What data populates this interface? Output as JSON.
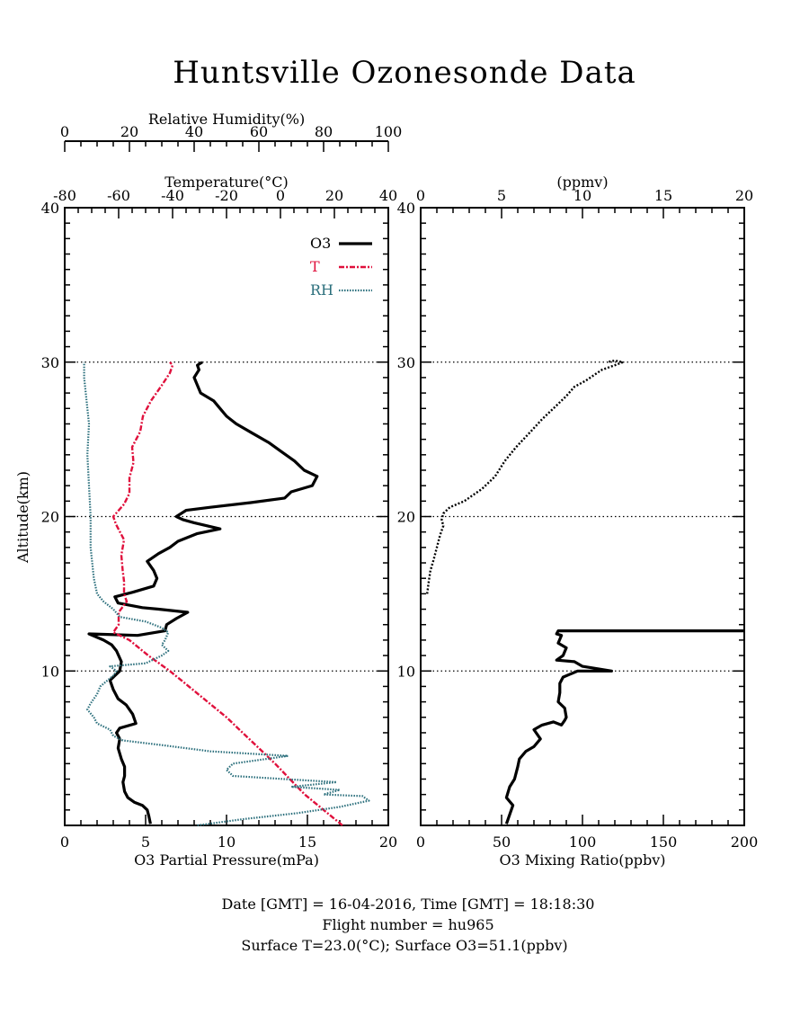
{
  "title": "Huntsville Ozonesonde Data",
  "colors": {
    "o3": "#000000",
    "temperature": "#e0103c",
    "rh": "#2b6f7c",
    "axis": "#000000"
  },
  "left_panel": {
    "top_axis_rh_label": "Relative Humidity(%)",
    "top_axis_temp_label": "Temperature(°C)",
    "bottom_axis_label": "O3 Partial Pressure(mPa)",
    "y_axis_label": "Altitude(km)"
  },
  "right_panel": {
    "top_axis_label": "(ppmv)",
    "bottom_axis_label": "O3 Mixing Ratio(ppbv)"
  },
  "legend": [
    {
      "label": "O3",
      "style": "solid"
    },
    {
      "label": "T",
      "style": "dashdot"
    },
    {
      "label": "RH",
      "style": "dotted"
    }
  ],
  "footer": {
    "line1": "Date [GMT] = 16-04-2016,  Time [GMT] = 18:18:30",
    "line2": "Flight number = hu965",
    "line3": "Surface T=23.0(°C); Surface O3=51.1(ppbv)"
  },
  "chart_data": [
    {
      "type": "line",
      "name": "profile",
      "ylim": [
        0,
        40
      ],
      "yticks": [
        10,
        20,
        30,
        40
      ],
      "axes": {
        "o3_partial_pressure": {
          "range": [
            0,
            20
          ],
          "ticks": [
            0,
            5,
            10,
            15,
            20
          ]
        },
        "temperature": {
          "range": [
            -80,
            40
          ],
          "ticks": [
            -80,
            -60,
            -40,
            -20,
            0,
            20,
            40
          ]
        },
        "relative_humidity": {
          "range": [
            0,
            100
          ],
          "ticks": [
            0,
            20,
            40,
            60,
            80,
            100
          ]
        }
      },
      "grid_altitudes": [
        10,
        20,
        30
      ],
      "legend_position": "top-right",
      "series": [
        {
          "name": "O3",
          "axis": "o3_partial_pressure",
          "style": "solid",
          "points": [
            [
              5.3,
              0.1
            ],
            [
              5.2,
              0.6
            ],
            [
              5.1,
              1.0
            ],
            [
              4.8,
              1.3
            ],
            [
              4.3,
              1.5
            ],
            [
              3.9,
              1.8
            ],
            [
              3.7,
              2.2
            ],
            [
              3.6,
              2.8
            ],
            [
              3.7,
              3.2
            ],
            [
              3.7,
              3.8
            ],
            [
              3.5,
              4.3
            ],
            [
              3.3,
              5.0
            ],
            [
              3.4,
              5.6
            ],
            [
              3.2,
              6.0
            ],
            [
              3.4,
              6.3
            ],
            [
              4.4,
              6.6
            ],
            [
              4.2,
              7.2
            ],
            [
              3.8,
              7.8
            ],
            [
              3.3,
              8.2
            ],
            [
              3.0,
              8.8
            ],
            [
              2.8,
              9.4
            ],
            [
              3.4,
              10.0
            ],
            [
              3.5,
              10.6
            ],
            [
              3.2,
              11.3
            ],
            [
              2.9,
              11.7
            ],
            [
              2.4,
              12.0
            ],
            [
              1.5,
              12.4
            ],
            [
              4.5,
              12.3
            ],
            [
              6.2,
              12.6
            ],
            [
              6.3,
              13.0
            ],
            [
              6.9,
              13.4
            ],
            [
              7.6,
              13.8
            ],
            [
              5.8,
              14.0
            ],
            [
              4.8,
              14.1
            ],
            [
              3.3,
              14.4
            ],
            [
              3.1,
              14.8
            ],
            [
              4.2,
              15.1
            ],
            [
              5.5,
              15.5
            ],
            [
              5.7,
              16.0
            ],
            [
              5.5,
              16.5
            ],
            [
              5.1,
              17.1
            ],
            [
              5.8,
              17.6
            ],
            [
              6.5,
              18.0
            ],
            [
              7.0,
              18.4
            ],
            [
              8.2,
              18.9
            ],
            [
              9.6,
              19.2
            ],
            [
              8.0,
              19.6
            ],
            [
              7.3,
              19.8
            ],
            [
              6.9,
              20.0
            ],
            [
              7.5,
              20.4
            ],
            [
              9.0,
              20.6
            ],
            [
              11.5,
              20.9
            ],
            [
              13.6,
              21.2
            ],
            [
              14.0,
              21.6
            ],
            [
              15.3,
              22.0
            ],
            [
              15.6,
              22.6
            ],
            [
              14.8,
              23.0
            ],
            [
              14.2,
              23.6
            ],
            [
              13.4,
              24.2
            ],
            [
              12.6,
              24.8
            ],
            [
              11.6,
              25.4
            ],
            [
              10.6,
              26.0
            ],
            [
              10.0,
              26.5
            ],
            [
              9.6,
              27.0
            ],
            [
              9.2,
              27.5
            ],
            [
              8.4,
              28.0
            ],
            [
              8.2,
              28.5
            ],
            [
              8.0,
              29.0
            ],
            [
              8.3,
              29.5
            ],
            [
              8.2,
              29.8
            ],
            [
              8.5,
              30.0
            ]
          ]
        },
        {
          "name": "T",
          "axis": "temperature",
          "style": "dashdot",
          "points": [
            [
              23.0,
              0.0
            ],
            [
              16.0,
              1.0
            ],
            [
              9.0,
              2.0
            ],
            [
              3.5,
              3.0
            ],
            [
              -2.0,
              4.0
            ],
            [
              -8.0,
              5.0
            ],
            [
              -14.0,
              6.0
            ],
            [
              -20.0,
              7.0
            ],
            [
              -27.0,
              8.0
            ],
            [
              -34.0,
              9.0
            ],
            [
              -41.0,
              10.0
            ],
            [
              -49.0,
              11.0
            ],
            [
              -56.0,
              12.0
            ],
            [
              -62.0,
              12.5
            ],
            [
              -60.0,
              13.0
            ],
            [
              -60.0,
              13.8
            ],
            [
              -57.0,
              14.5
            ],
            [
              -58.0,
              15.0
            ],
            [
              -58.0,
              15.8
            ],
            [
              -58.5,
              16.5
            ],
            [
              -59.0,
              17.5
            ],
            [
              -58.0,
              18.5
            ],
            [
              -61.0,
              19.5
            ],
            [
              -62.0,
              20.0
            ],
            [
              -58.0,
              20.8
            ],
            [
              -56.0,
              21.5
            ],
            [
              -56.0,
              22.5
            ],
            [
              -54.5,
              23.5
            ],
            [
              -55.0,
              24.5
            ],
            [
              -52.0,
              25.5
            ],
            [
              -51.0,
              26.5
            ],
            [
              -48.0,
              27.5
            ],
            [
              -44.0,
              28.5
            ],
            [
              -41.0,
              29.3
            ],
            [
              -40.0,
              29.8
            ],
            [
              -41.0,
              30.0
            ]
          ]
        },
        {
          "name": "RH",
          "axis": "relative_humidity",
          "style": "dotted",
          "points": [
            [
              41.0,
              0.0
            ],
            [
              55.0,
              0.4
            ],
            [
              72.0,
              0.8
            ],
            [
              85.0,
              1.2
            ],
            [
              94.0,
              1.6
            ],
            [
              92.0,
              1.9
            ],
            [
              80.0,
              2.0
            ],
            [
              85.0,
              2.3
            ],
            [
              70.0,
              2.5
            ],
            [
              84.0,
              2.8
            ],
            [
              68.0,
              3.0
            ],
            [
              52.0,
              3.2
            ],
            [
              50.0,
              3.6
            ],
            [
              52.0,
              4.0
            ],
            [
              69.0,
              4.5
            ],
            [
              45.0,
              4.8
            ],
            [
              30.0,
              5.2
            ],
            [
              18.0,
              5.5
            ],
            [
              15.0,
              5.8
            ],
            [
              14.0,
              6.2
            ],
            [
              10.0,
              6.6
            ],
            [
              9.0,
              7.0
            ],
            [
              7.0,
              7.5
            ],
            [
              8.0,
              7.9
            ],
            [
              10.0,
              8.5
            ],
            [
              11.0,
              9.0
            ],
            [
              15.0,
              9.7
            ],
            [
              16.0,
              10.0
            ],
            [
              14.0,
              10.3
            ],
            [
              25.0,
              10.5
            ],
            [
              30.0,
              11.0
            ],
            [
              32.0,
              11.3
            ],
            [
              30.0,
              11.7
            ],
            [
              31.0,
              12.0
            ],
            [
              32.0,
              12.5
            ],
            [
              30.0,
              12.8
            ],
            [
              25.0,
              13.2
            ],
            [
              17.0,
              13.5
            ],
            [
              15.0,
              14.0
            ],
            [
              12.0,
              14.5
            ],
            [
              10.0,
              15.0
            ],
            [
              9.0,
              16.0
            ],
            [
              8.0,
              18.0
            ],
            [
              8.0,
              20.0
            ],
            [
              7.5,
              22.0
            ],
            [
              7.0,
              24.0
            ],
            [
              7.5,
              26.0
            ],
            [
              7.0,
              27.0
            ],
            [
              6.5,
              28.0
            ],
            [
              6.0,
              29.0
            ],
            [
              6.0,
              30.0
            ]
          ]
        }
      ]
    },
    {
      "type": "line",
      "name": "mixing_ratio",
      "ylim": [
        0,
        40
      ],
      "yticks": [
        10,
        20,
        30,
        40
      ],
      "axes": {
        "o3_mixing_ratio_ppbv": {
          "range": [
            0,
            200
          ],
          "ticks": [
            0,
            50,
            100,
            150,
            200
          ]
        },
        "o3_mixing_ratio_ppmv": {
          "range": [
            0,
            20
          ],
          "ticks": [
            0,
            5,
            10,
            15,
            20
          ]
        }
      },
      "grid_altitudes": [
        10,
        20,
        30
      ],
      "series": [
        {
          "name": "O3 ppbv",
          "axis": "o3_mixing_ratio_ppbv",
          "style": "solid",
          "points": [
            [
              53,
              0.1
            ],
            [
              55,
              0.7
            ],
            [
              57,
              1.3
            ],
            [
              53,
              1.8
            ],
            [
              55,
              2.5
            ],
            [
              58,
              3.0
            ],
            [
              60,
              3.8
            ],
            [
              61,
              4.3
            ],
            [
              65,
              4.8
            ],
            [
              70,
              5.1
            ],
            [
              74,
              5.6
            ],
            [
              70,
              6.2
            ],
            [
              75,
              6.5
            ],
            [
              82,
              6.7
            ],
            [
              87,
              6.5
            ],
            [
              89,
              6.8
            ],
            [
              90,
              7.0
            ],
            [
              89,
              7.6
            ],
            [
              85,
              8.0
            ],
            [
              86,
              8.6
            ],
            [
              86,
              9.2
            ],
            [
              88,
              9.6
            ],
            [
              97,
              10.0
            ],
            [
              118,
              10.0
            ],
            [
              100,
              10.3
            ],
            [
              95,
              10.6
            ],
            [
              84,
              10.7
            ],
            [
              88,
              11.0
            ],
            [
              90,
              11.5
            ],
            [
              85,
              11.8
            ],
            [
              87,
              12.3
            ],
            [
              84,
              12.4
            ],
            [
              85,
              12.6
            ],
            [
              200,
              12.6
            ]
          ]
        },
        {
          "name": "O3 ppmv",
          "axis": "o3_mixing_ratio_ppmv",
          "style": "dotted",
          "points": [
            [
              0.4,
              15.0
            ],
            [
              0.5,
              15.8
            ],
            [
              0.6,
              16.5
            ],
            [
              0.8,
              17.2
            ],
            [
              1.0,
              18.0
            ],
            [
              1.2,
              18.8
            ],
            [
              1.4,
              19.4
            ],
            [
              1.3,
              19.8
            ],
            [
              1.4,
              20.2
            ],
            [
              1.8,
              20.6
            ],
            [
              2.7,
              21.0
            ],
            [
              3.8,
              21.8
            ],
            [
              4.6,
              22.6
            ],
            [
              5.2,
              23.6
            ],
            [
              5.9,
              24.5
            ],
            [
              6.8,
              25.5
            ],
            [
              7.5,
              26.3
            ],
            [
              8.3,
              27.1
            ],
            [
              9.0,
              27.8
            ],
            [
              9.5,
              28.4
            ],
            [
              10.2,
              28.8
            ],
            [
              11.2,
              29.5
            ],
            [
              12.0,
              29.8
            ],
            [
              12.5,
              30.0
            ],
            [
              12.0,
              30.1
            ],
            [
              11.5,
              30.0
            ]
          ]
        }
      ]
    }
  ]
}
